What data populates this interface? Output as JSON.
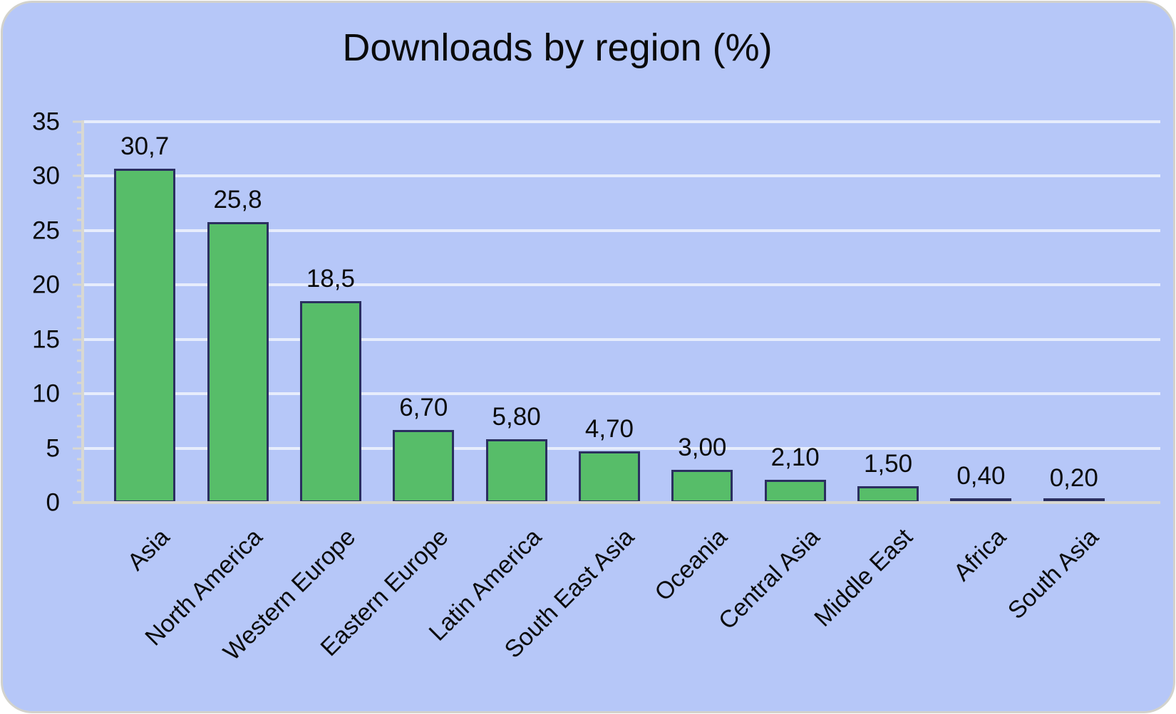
{
  "title": "Downloads by region (%)",
  "colors": {
    "panel_background": "#b6c7f8",
    "panel_border": "#d2d2cc",
    "outer_background": "#ffffff",
    "bar_fill": "#57bd69",
    "bar_border": "#2b2f60",
    "gridline": "#e7edfc",
    "axis": "#d8d8d2",
    "text": "#0a0a0a"
  },
  "chart_data": {
    "type": "bar",
    "title": "Downloads by region (%)",
    "categories": [
      "Asia",
      "North America",
      "Western Europe",
      "Eastern Europe",
      "Latin America",
      "South East Asia",
      "Oceania",
      "Central Asia",
      "Middle East",
      "Africa",
      "South Asia"
    ],
    "values": [
      30.7,
      25.8,
      18.5,
      6.7,
      5.8,
      4.7,
      3.0,
      2.1,
      1.5,
      0.4,
      0.2
    ],
    "value_labels": [
      "30,7",
      "25,8",
      "18,5",
      "6,70",
      "5,80",
      "4,70",
      "3,00",
      "2,10",
      "1,50",
      "0,40",
      "0,20"
    ],
    "xlabel": "",
    "ylabel": "",
    "ylim": [
      0,
      35
    ],
    "y_ticks": [
      0,
      5,
      10,
      15,
      20,
      25,
      30,
      35
    ],
    "y_tick_labels": [
      "0",
      "5",
      "10",
      "15",
      "20",
      "25",
      "30",
      "35"
    ],
    "minor_tick_step": 1,
    "grid": "horizontal",
    "legend": "none",
    "x_label_rotation_deg": 45,
    "decimal_separator": ","
  }
}
